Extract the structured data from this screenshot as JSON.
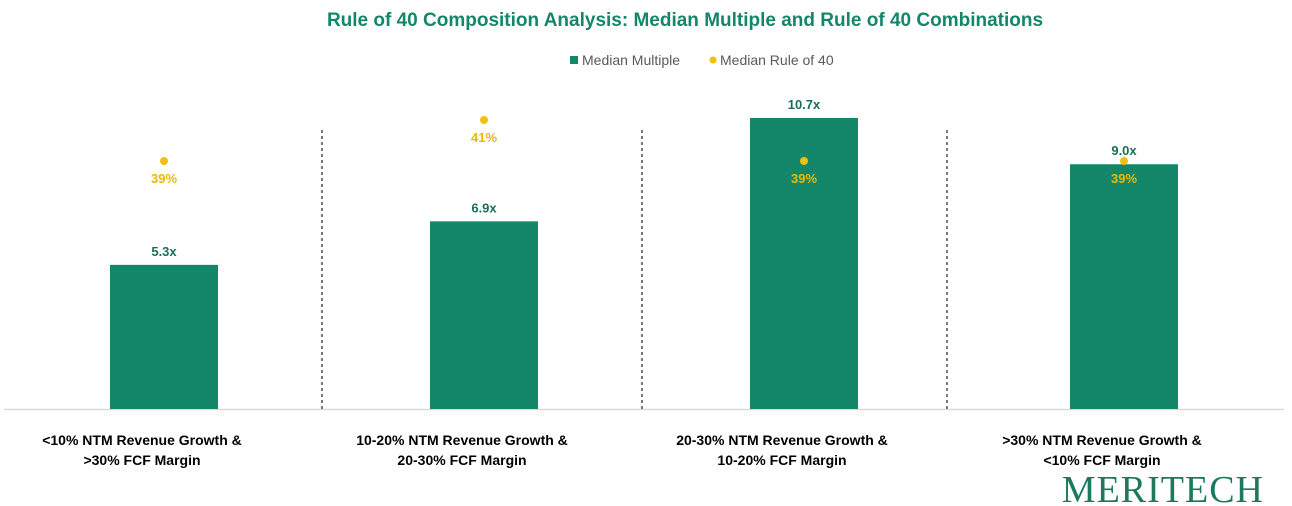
{
  "colors": {
    "bar": "#14866a",
    "dot": "#f2c010",
    "title": "#14866a",
    "bar_label": "#1a6e58",
    "dot_label": "#e8b90a",
    "logo": "#1b7a5e",
    "divider": "#222222",
    "axis": "#d9d9d9"
  },
  "logo_text": "MERITECH",
  "chart_data": {
    "type": "bar",
    "title": "Rule of 40 Composition Analysis: Median Multiple and Rule of 40 Combinations",
    "legend": [
      "Median Multiple",
      "Median Rule of 40"
    ],
    "categories": [
      [
        "<10% NTM Revenue Growth &",
        ">30% FCF Margin"
      ],
      [
        "10-20% NTM Revenue Growth &",
        "20-30% FCF Margin"
      ],
      [
        "20-30% NTM Revenue Growth &",
        "10-20% FCF Margin"
      ],
      [
        ">30% NTM Revenue Growth &",
        "<10% FCF Margin"
      ]
    ],
    "series": [
      {
        "name": "Median Multiple",
        "type": "bar",
        "values": [
          5.3,
          6.9,
          10.7,
          9.0
        ],
        "labels": [
          "5.3x",
          "6.9x",
          "10.7x",
          "9.0x"
        ]
      },
      {
        "name": "Median Rule of 40",
        "type": "scatter",
        "values": [
          39,
          41,
          39,
          39
        ],
        "labels": [
          "39%",
          "41%",
          "39%",
          "39%"
        ]
      }
    ],
    "ylim_multiple": [
      0,
      10.7
    ],
    "ylim_rule_of_40": [
      0,
      41
    ],
    "grid": false
  }
}
